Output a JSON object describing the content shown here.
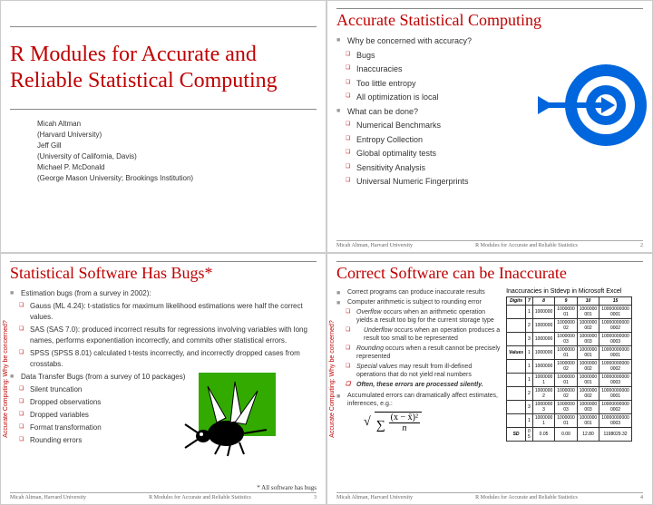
{
  "slide1": {
    "title": "R Modules for Accurate and Reliable Statistical Computing",
    "authors": [
      "Micah Altman",
      "(Harvard University)",
      "Jeff Gill",
      "(University of California, Davis)",
      "Michael P. McDonald",
      "(George Mason University; Brookings Institution)"
    ]
  },
  "slide2": {
    "title": "Accurate Statistical Computing",
    "b1": "Why be concerned with accuracy?",
    "s1a": "Bugs",
    "s1b": "Inaccuracies",
    "s1c": "Too little entropy",
    "s1d": "All optimization is local",
    "b2": "What can be done?",
    "s2a": "Numerical Benchmarks",
    "s2b": "Entropy Collection",
    "s2c": "Global optimality tests",
    "s2d": "Sensitivity Analysis",
    "s2e": "Universal Numeric Fingerprints",
    "footer_author": "Micah Altman, Harvard University",
    "footer_title": "R Modules for Accurate and Reliable Statistics",
    "page": "2",
    "target_color": "#0066dd"
  },
  "slide3": {
    "title": "Statistical Software Has Bugs*",
    "vert": "Accurate Computing: Why be concerned?",
    "b1": "Estimation bugs (from a survey in 2002):",
    "s1a": "Gauss (ML 4.24): t-statistics for maximum likelihood estimations were half the correct values.",
    "s1b": "SAS (SAS 7.0): produced incorrect results for regressions involving variables with long names, performs exponentiation incorrectly, and commits other statistical errors.",
    "s1c": "SPSS (SPSS 8.01) calculated t-tests incorrectly, and incorrectly dropped cases from crosstabs.",
    "b2": "Data Transfer Bugs (from a survey of 10 packages)",
    "s2a": "Silent truncation",
    "s2b": "Dropped observations",
    "s2c": "Dropped variables",
    "s2d": "Format transformation",
    "s2e": "Rounding errors",
    "footnote": "* All software has bugs",
    "footer_author": "Micah Altman, Harvard University",
    "footer_title": "R Modules for Accurate and Reliable Statistics",
    "page": "3",
    "bug_bg": "#33aa00"
  },
  "slide4": {
    "title": "Correct Software can be Inaccurate",
    "vert": "Accurate Computing: Why be concerned?",
    "b1": "Correct programs can produce inaccurate results",
    "b2": "Computer arithmetic is subject to rounding error",
    "s2a": "Overflow occurs when an arithmetic operation yields a result too big for the current storage type",
    "s2b": "Underflow occurs when an operation produces a result too small to be represented",
    "s2c": "Rounding occurs when a result cannot be precisely represented",
    "s2d": "Special values may result from ill-defined operations that do not yield real numbers",
    "s2e": "Often, these errors are processed silently.",
    "b3": "Accumulated errors can dramatically affect estimates, inferences, e.g.:",
    "tbl_title": "Inaccuracies in Stdevp in Microsoft Excel",
    "tbl": {
      "headers": [
        "Digits",
        "7",
        "8",
        "9",
        "10",
        "15"
      ],
      "rows": [
        [
          "",
          "1",
          "1000000",
          "1000000\n01",
          "1000000\n001",
          "10000000000\n0001"
        ],
        [
          "",
          "2",
          "1000000",
          "1000000\n02",
          "1000000\n002",
          "10000000000\n0002"
        ],
        [
          "",
          "3",
          "1000000",
          "1000000\n03",
          "1000000\n003",
          "10000000000\n0003"
        ],
        [
          "Values",
          "1",
          "1000000",
          "1000000\n01",
          "1000000\n001",
          "10000000000\n0001"
        ],
        [
          "",
          "1",
          "1000000",
          "1000000\n02",
          "1000000\n002",
          "10000000000\n0002"
        ],
        [
          "",
          "1",
          "1000000\n1",
          "1000000\n01",
          "1000000\n001",
          "10000000000\n0003"
        ],
        [
          "",
          "2",
          "1000000\n2",
          "1000000\n02",
          "1000000\n002",
          "10000000000\n0001"
        ],
        [
          "",
          "3",
          "1000000\n3",
          "1000000\n03",
          "1000000\n003",
          "10000000000\n0002"
        ],
        [
          "",
          "1",
          "1000000\n1",
          "1000000\n01",
          "1000000\n001",
          "10000000000\n0003"
        ],
        [
          "SD",
          "0\n5",
          "0.05",
          "0.00",
          "12.80",
          "1198029.32"
        ]
      ]
    },
    "formula_top": "(x − x̄)²",
    "formula_sigma": "∑",
    "formula_sqrt": "√",
    "formula_bot": "n",
    "footer_author": "Micah Altman, Harvard University",
    "footer_title": "R Modules for Accurate and Reliable Statistics",
    "page": "4"
  }
}
